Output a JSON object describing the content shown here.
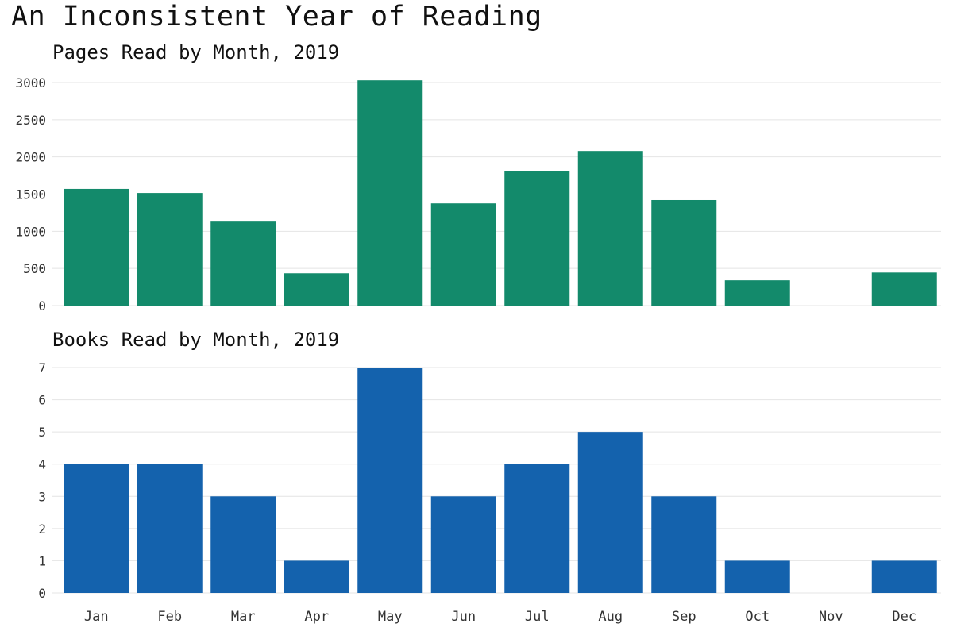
{
  "title": "An Inconsistent Year of Reading",
  "chart_data": [
    {
      "type": "bar",
      "title": "Pages Read by Month, 2019",
      "categories": [
        "Jan",
        "Feb",
        "Mar",
        "Apr",
        "May",
        "Jun",
        "Jul",
        "Aug",
        "Sep",
        "Oct",
        "Nov",
        "Dec"
      ],
      "values": [
        1570,
        1515,
        1130,
        435,
        3030,
        1375,
        1805,
        2080,
        1420,
        340,
        0,
        445
      ],
      "ylim": [
        0,
        3000
      ],
      "yticks": [
        0,
        500,
        1000,
        1500,
        2000,
        2500,
        3000
      ],
      "color": "#138a6b",
      "grid": true,
      "show_x_labels": false
    },
    {
      "type": "bar",
      "title": "Books Read by Month, 2019",
      "categories": [
        "Jan",
        "Feb",
        "Mar",
        "Apr",
        "May",
        "Jun",
        "Jul",
        "Aug",
        "Sep",
        "Oct",
        "Nov",
        "Dec"
      ],
      "values": [
        4,
        4,
        3,
        1,
        7,
        3,
        4,
        5,
        3,
        1,
        0,
        1
      ],
      "ylim": [
        0,
        7
      ],
      "yticks": [
        0,
        1,
        2,
        3,
        4,
        5,
        6,
        7
      ],
      "color": "#1462ad",
      "grid": true,
      "show_x_labels": true
    }
  ]
}
